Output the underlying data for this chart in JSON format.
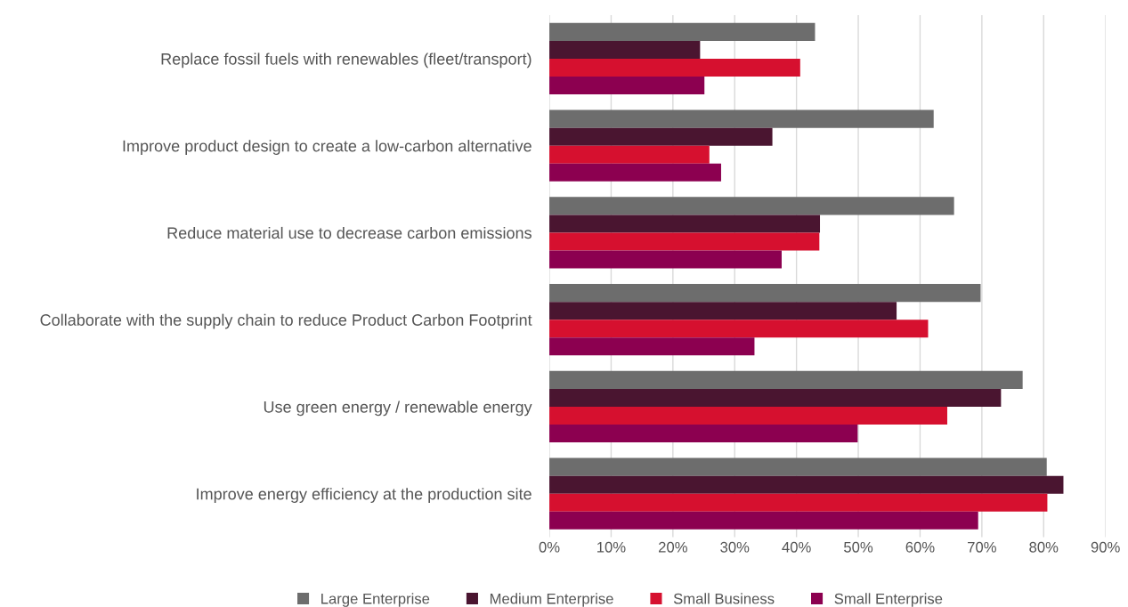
{
  "chart_data": {
    "type": "bar",
    "orientation": "horizontal",
    "categories": [
      "Replace fossil fuels with renewables (fleet/transport)",
      "Improve product design to create a low-carbon alternative",
      "Reduce material use to decrease carbon emissions",
      "Collaborate with the supply chain to reduce Product Carbon Footprint",
      "Use green energy / renewable energy",
      "Improve energy efficiency at the production site"
    ],
    "series": [
      {
        "name": "Large Enterprise",
        "color": "#6d6d6d",
        "values": [
          43.0,
          62.2,
          65.5,
          69.8,
          76.6,
          80.5
        ]
      },
      {
        "name": "Medium Enterprise",
        "color": "#4a1530",
        "values": [
          24.4,
          36.1,
          43.8,
          56.2,
          73.1,
          83.2
        ]
      },
      {
        "name": "Small Business",
        "color": "#d6102f",
        "values": [
          40.6,
          25.9,
          43.7,
          61.3,
          64.4,
          80.6
        ]
      },
      {
        "name": "Small Enterprise",
        "color": "#8c0050",
        "values": [
          25.1,
          27.8,
          37.6,
          33.2,
          49.9,
          69.4
        ]
      }
    ],
    "xlim": [
      0,
      90
    ],
    "xticks": [
      {
        "value": 0,
        "label": "0%"
      },
      {
        "value": 10,
        "label": "10%"
      },
      {
        "value": 20,
        "label": "20%"
      },
      {
        "value": 30,
        "label": "30%"
      },
      {
        "value": 40,
        "label": "40%"
      },
      {
        "value": 50,
        "label": "50%"
      },
      {
        "value": 60,
        "label": "60%"
      },
      {
        "value": 70,
        "label": "70%"
      },
      {
        "value": 80,
        "label": "80%"
      },
      {
        "value": 90,
        "label": "90%"
      }
    ],
    "grid": "x",
    "legend": "bottom"
  }
}
